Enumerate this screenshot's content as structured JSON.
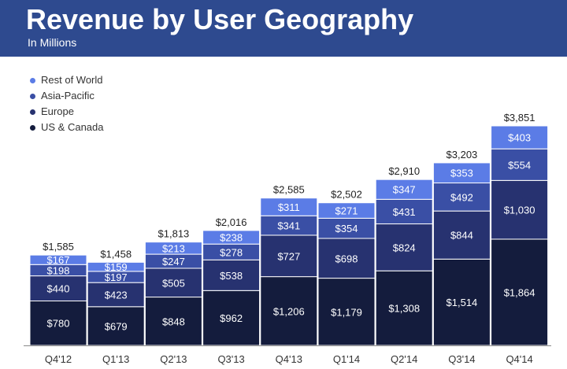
{
  "header": {
    "title": "Revenue by User Geography",
    "subtitle": "In Millions"
  },
  "colors": {
    "banner": "#2e4a8f",
    "rest_of_world": "#5b7ce6",
    "asia_pacific": "#3a4fa5",
    "europe": "#273270",
    "us_canada": "#141c3d"
  },
  "chart_data": {
    "type": "bar",
    "stacked": true,
    "title": "Revenue by User Geography",
    "subtitle": "In Millions",
    "categories": [
      "Q4'12",
      "Q1'13",
      "Q2'13",
      "Q3'13",
      "Q4'13",
      "Q1'14",
      "Q2'14",
      "Q3'14",
      "Q4'14"
    ],
    "series": [
      {
        "name": "US & Canada",
        "color": "#141c3d",
        "values": [
          780,
          679,
          848,
          962,
          1206,
          1179,
          1308,
          1514,
          1864
        ],
        "labels": [
          "$780",
          "$679",
          "$848",
          "$962",
          "$1,206",
          "$1,179",
          "$1,308",
          "$1,514",
          "$1,864"
        ]
      },
      {
        "name": "Europe",
        "color": "#273270",
        "values": [
          440,
          423,
          505,
          538,
          727,
          698,
          824,
          844,
          1030
        ],
        "labels": [
          "$440",
          "$423",
          "$505",
          "$538",
          "$727",
          "$698",
          "$824",
          "$844",
          "$1,030"
        ]
      },
      {
        "name": "Asia-Pacific",
        "color": "#3a4fa5",
        "values": [
          198,
          197,
          247,
          278,
          341,
          354,
          431,
          492,
          554
        ],
        "labels": [
          "$198",
          "$197",
          "$247",
          "$278",
          "$341",
          "$354",
          "$431",
          "$492",
          "$554"
        ]
      },
      {
        "name": "Rest of World",
        "color": "#5b7ce6",
        "values": [
          167,
          159,
          213,
          238,
          311,
          271,
          347,
          353,
          403
        ],
        "labels": [
          "$167",
          "$159",
          "$213",
          "$238",
          "$311",
          "$271",
          "$347",
          "$353",
          "$403"
        ]
      }
    ],
    "totals": [
      1585,
      1458,
      1813,
      2016,
      2585,
      2502,
      2910,
      3203,
      3851
    ],
    "total_labels": [
      "$1,585",
      "$1,458",
      "$1,813",
      "$2,016",
      "$2,585",
      "$2,502",
      "$2,910",
      "$3,203",
      "$3,851"
    ],
    "legend": [
      "Rest of World",
      "Asia-Pacific",
      "Europe",
      "US & Canada"
    ],
    "legend_position": "top-left",
    "grid": false,
    "ylim": [
      0,
      4000
    ]
  }
}
